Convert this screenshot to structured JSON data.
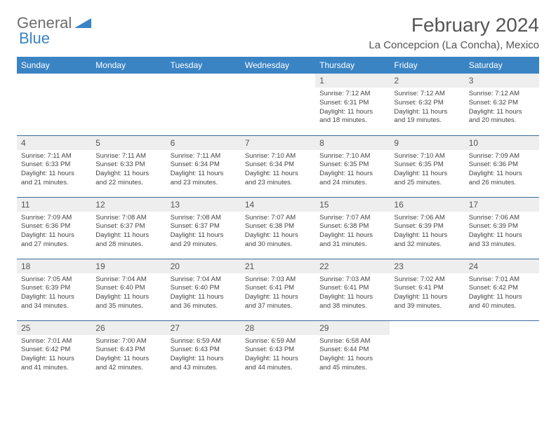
{
  "logo": {
    "text1": "General",
    "text2": "Blue"
  },
  "title": "February 2024",
  "location": "La Concepcion (La Concha), Mexico",
  "colors": {
    "header_bg": "#3a84c4",
    "header_text": "#ffffff",
    "daynum_bg": "#eeeeee",
    "border": "#3a6a9a",
    "logo_gray": "#6d6d6d",
    "logo_blue": "#3a84c4"
  },
  "weekdays": [
    "Sunday",
    "Monday",
    "Tuesday",
    "Wednesday",
    "Thursday",
    "Friday",
    "Saturday"
  ],
  "weeks": [
    [
      null,
      null,
      null,
      null,
      {
        "n": "1",
        "sr": "7:12 AM",
        "ss": "6:31 PM",
        "dl": "11 hours and 18 minutes."
      },
      {
        "n": "2",
        "sr": "7:12 AM",
        "ss": "6:32 PM",
        "dl": "11 hours and 19 minutes."
      },
      {
        "n": "3",
        "sr": "7:12 AM",
        "ss": "6:32 PM",
        "dl": "11 hours and 20 minutes."
      }
    ],
    [
      {
        "n": "4",
        "sr": "7:11 AM",
        "ss": "6:33 PM",
        "dl": "11 hours and 21 minutes."
      },
      {
        "n": "5",
        "sr": "7:11 AM",
        "ss": "6:33 PM",
        "dl": "11 hours and 22 minutes."
      },
      {
        "n": "6",
        "sr": "7:11 AM",
        "ss": "6:34 PM",
        "dl": "11 hours and 23 minutes."
      },
      {
        "n": "7",
        "sr": "7:10 AM",
        "ss": "6:34 PM",
        "dl": "11 hours and 23 minutes."
      },
      {
        "n": "8",
        "sr": "7:10 AM",
        "ss": "6:35 PM",
        "dl": "11 hours and 24 minutes."
      },
      {
        "n": "9",
        "sr": "7:10 AM",
        "ss": "6:35 PM",
        "dl": "11 hours and 25 minutes."
      },
      {
        "n": "10",
        "sr": "7:09 AM",
        "ss": "6:36 PM",
        "dl": "11 hours and 26 minutes."
      }
    ],
    [
      {
        "n": "11",
        "sr": "7:09 AM",
        "ss": "6:36 PM",
        "dl": "11 hours and 27 minutes."
      },
      {
        "n": "12",
        "sr": "7:08 AM",
        "ss": "6:37 PM",
        "dl": "11 hours and 28 minutes."
      },
      {
        "n": "13",
        "sr": "7:08 AM",
        "ss": "6:37 PM",
        "dl": "11 hours and 29 minutes."
      },
      {
        "n": "14",
        "sr": "7:07 AM",
        "ss": "6:38 PM",
        "dl": "11 hours and 30 minutes."
      },
      {
        "n": "15",
        "sr": "7:07 AM",
        "ss": "6:38 PM",
        "dl": "11 hours and 31 minutes."
      },
      {
        "n": "16",
        "sr": "7:06 AM",
        "ss": "6:39 PM",
        "dl": "11 hours and 32 minutes."
      },
      {
        "n": "17",
        "sr": "7:06 AM",
        "ss": "6:39 PM",
        "dl": "11 hours and 33 minutes."
      }
    ],
    [
      {
        "n": "18",
        "sr": "7:05 AM",
        "ss": "6:39 PM",
        "dl": "11 hours and 34 minutes."
      },
      {
        "n": "19",
        "sr": "7:04 AM",
        "ss": "6:40 PM",
        "dl": "11 hours and 35 minutes."
      },
      {
        "n": "20",
        "sr": "7:04 AM",
        "ss": "6:40 PM",
        "dl": "11 hours and 36 minutes."
      },
      {
        "n": "21",
        "sr": "7:03 AM",
        "ss": "6:41 PM",
        "dl": "11 hours and 37 minutes."
      },
      {
        "n": "22",
        "sr": "7:03 AM",
        "ss": "6:41 PM",
        "dl": "11 hours and 38 minutes."
      },
      {
        "n": "23",
        "sr": "7:02 AM",
        "ss": "6:41 PM",
        "dl": "11 hours and 39 minutes."
      },
      {
        "n": "24",
        "sr": "7:01 AM",
        "ss": "6:42 PM",
        "dl": "11 hours and 40 minutes."
      }
    ],
    [
      {
        "n": "25",
        "sr": "7:01 AM",
        "ss": "6:42 PM",
        "dl": "11 hours and 41 minutes."
      },
      {
        "n": "26",
        "sr": "7:00 AM",
        "ss": "6:43 PM",
        "dl": "11 hours and 42 minutes."
      },
      {
        "n": "27",
        "sr": "6:59 AM",
        "ss": "6:43 PM",
        "dl": "11 hours and 43 minutes."
      },
      {
        "n": "28",
        "sr": "6:59 AM",
        "ss": "6:43 PM",
        "dl": "11 hours and 44 minutes."
      },
      {
        "n": "29",
        "sr": "6:58 AM",
        "ss": "6:44 PM",
        "dl": "11 hours and 45 minutes."
      },
      null,
      null
    ]
  ],
  "labels": {
    "sunrise": "Sunrise: ",
    "sunset": "Sunset: ",
    "daylight": "Daylight: "
  }
}
